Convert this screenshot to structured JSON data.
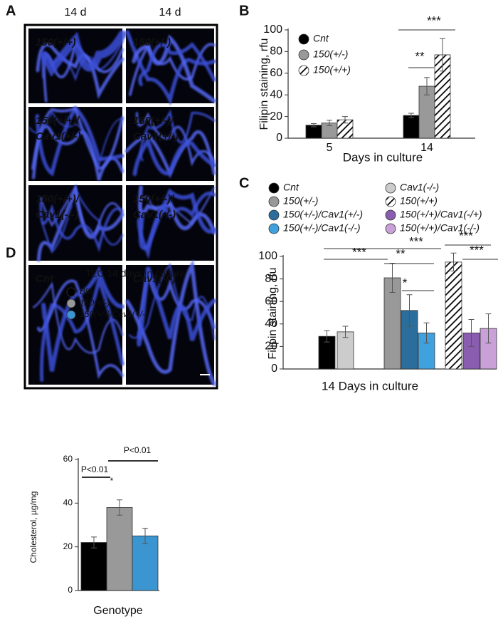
{
  "figure": {
    "panel_labels": [
      "A",
      "B",
      "C",
      "D"
    ]
  },
  "image_panel": {
    "column_headers": [
      "14 d",
      "14 d"
    ],
    "cells": [
      [
        "150(+/+)"
      ],
      [
        "150(+/-)"
      ],
      [
        "150(+/+)/",
        "Cav1(+/-)"
      ],
      [
        "150(+/-)/",
        "Cav1(+/-)"
      ],
      [
        "150(+/+)/",
        "Cav1(-/-)"
      ],
      [
        "150(+/-)/",
        "Cav1(-/-)"
      ],
      [
        "Cnt"
      ],
      [
        "Cav1(-/-)"
      ]
    ]
  },
  "chart_data": [
    {
      "type": "bar",
      "categories": [
        "5",
        "14"
      ],
      "xlabel": "Days in culture",
      "ylabel": "Filipin staining, rfu",
      "ylim": [
        0,
        100
      ],
      "yticks": [
        0,
        20,
        40,
        60,
        80,
        100
      ],
      "legend": "upper left",
      "series": [
        {
          "name": "Cnt",
          "color": "#000000",
          "values": [
            12,
            21
          ],
          "errors": [
            1.5,
            2
          ]
        },
        {
          "name": "150(+/-)",
          "color": "#999999",
          "values": [
            14,
            48
          ],
          "errors": [
            2.5,
            8
          ]
        },
        {
          "name": "150(+/+)",
          "color": "#000000",
          "hatch": true,
          "values": [
            17,
            77
          ],
          "errors": [
            3,
            15
          ]
        }
      ],
      "annotations": [
        {
          "text": "**"
        },
        {
          "text": "***"
        }
      ]
    },
    {
      "type": "bar",
      "xlabel": "14 Days in culture",
      "ylabel": "Filipin staining, rfu",
      "ylim": [
        0,
        100
      ],
      "yticks": [
        0,
        20,
        40,
        60,
        80,
        100
      ],
      "legend": "top",
      "series": [
        {
          "name": "Cnt",
          "color": "#000000",
          "values": [
            29
          ],
          "errors": [
            5
          ]
        },
        {
          "name": "Cav1(-/-)",
          "color": "#cccccc",
          "values": [
            33
          ],
          "errors": [
            5
          ]
        },
        {
          "name": "150(+/-)",
          "color": "#999999",
          "values": [
            81
          ],
          "errors": [
            13
          ]
        },
        {
          "name": "150(+/-)/Cav1(+/-)",
          "color": "#2c6e9b",
          "values": [
            52
          ],
          "errors": [
            14
          ]
        },
        {
          "name": "150(+/-)/Cav1(-/-)",
          "color": "#3fa2de",
          "values": [
            32
          ],
          "errors": [
            9
          ]
        },
        {
          "name": "150(+/+)",
          "color": "#000000",
          "hatch": true,
          "values": [
            95
          ],
          "errors": [
            8
          ]
        },
        {
          "name": "150(+/+)/Cav1(-/+)",
          "color": "#8a5db0",
          "values": [
            32
          ],
          "errors": [
            12
          ]
        },
        {
          "name": "150(+/+)/Cav1(-/-)",
          "color": "#c9a1d8",
          "values": [
            36
          ],
          "errors": [
            13
          ]
        }
      ],
      "annotations": [
        {
          "text": "***"
        },
        {
          "text": "***"
        },
        {
          "text": "**"
        },
        {
          "text": "*"
        },
        {
          "text": "***"
        },
        {
          "text": "***"
        }
      ]
    },
    {
      "type": "bar",
      "title": "TLC 14 days in culture",
      "xlabel": "Genotype",
      "ylabel": "Cholesterol, µg/mg",
      "ylim": [
        0,
        60
      ],
      "yticks": [
        0,
        20,
        40,
        60
      ],
      "legend": "top",
      "series": [
        {
          "name": "Bl6",
          "color": "#000000",
          "values": [
            22
          ],
          "errors": [
            2.5
          ]
        },
        {
          "name": "150(+/-)",
          "color": "#999999",
          "values": [
            38
          ],
          "errors": [
            3.5
          ]
        },
        {
          "name": "150(+/-)/Cav1(+/-)",
          "color": "#3b95d0",
          "values": [
            25
          ],
          "errors": [
            3.5
          ]
        }
      ],
      "annotations": [
        {
          "text": "P<0.01"
        },
        {
          "text": "P<0.01"
        },
        {
          "text": "*"
        }
      ]
    }
  ]
}
